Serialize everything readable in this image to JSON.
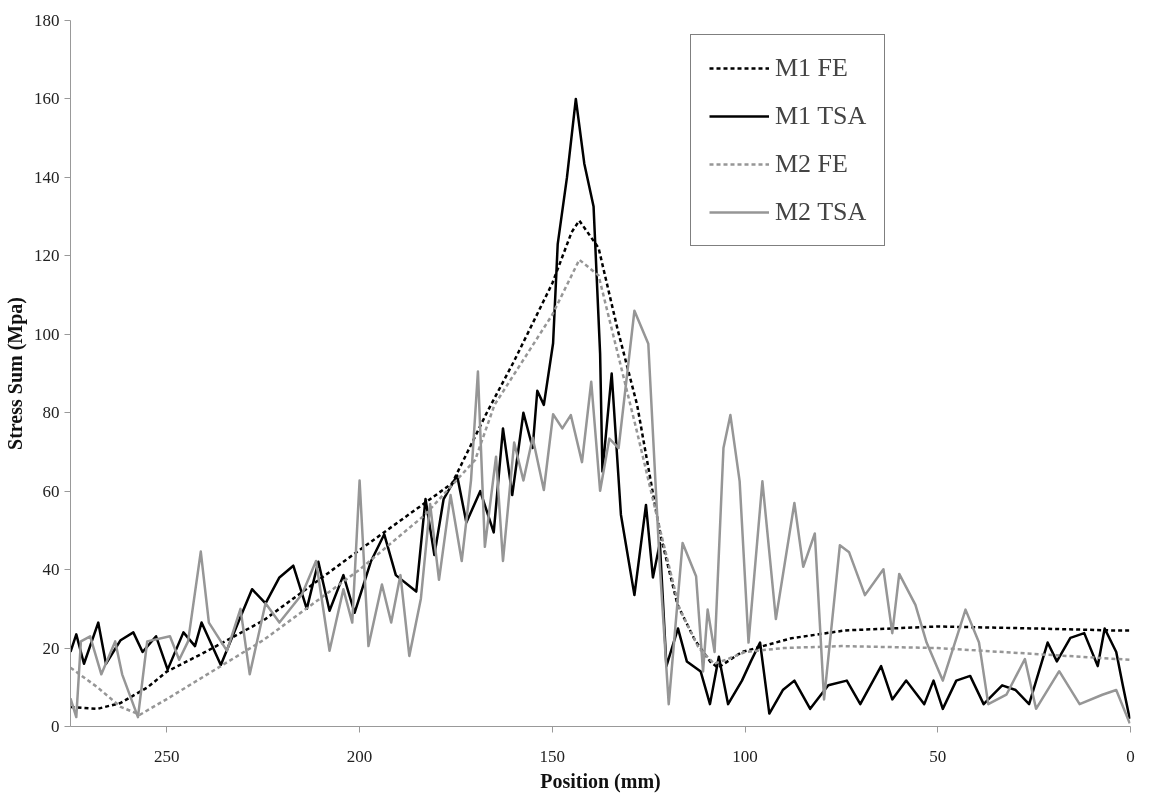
{
  "chart_data": {
    "type": "line",
    "xlabel": "Position (mm)",
    "ylabel": "Stress Sum (Mpa)",
    "xlim": [
      275,
      0
    ],
    "xticks": [
      250,
      200,
      150,
      100,
      50,
      0
    ],
    "ylim": [
      0,
      180
    ],
    "yticks": [
      0,
      20,
      40,
      60,
      80,
      100,
      120,
      140,
      160,
      180
    ],
    "grid": false,
    "legend": "top right",
    "marker": "none",
    "series": [
      {
        "name": "M1 FE",
        "color": "#000000",
        "line_style": "dashed",
        "x": [
          275,
          268,
          262,
          255,
          250,
          240,
          225,
          200,
          176,
          167,
          160,
          150,
          145,
          143,
          138,
          133,
          128,
          122,
          117.5,
          113,
          109,
          107,
          100.8,
          88,
          74,
          50,
          25,
          5,
          0
        ],
        "values": [
          5,
          4.5,
          6,
          10,
          14,
          19,
          27,
          45,
          62,
          80,
          93,
          113,
          126,
          129,
          122,
          101,
          82,
          49,
          31,
          22,
          16.5,
          15,
          19,
          22.5,
          24.5,
          25.5,
          25,
          24.5,
          24.5
        ]
      },
      {
        "name": "M1 TSA",
        "color": "#000000",
        "line_style": "solid",
        "x": [
          275,
          273.5,
          271.5,
          267.8,
          265.8,
          262,
          258.7,
          256.3,
          252.8,
          249.8,
          245.7,
          242.7,
          241,
          236,
          231.5,
          227.9,
          224.4,
          220.8,
          217.2,
          213.7,
          210.7,
          207.8,
          204.2,
          201.3,
          197.1,
          193.6,
          190.6,
          185.3,
          182.9,
          180.6,
          178.2,
          174.7,
          172.3,
          168.7,
          165.2,
          162.8,
          160.4,
          157.5,
          155.1,
          153.9,
          152.2,
          149.8,
          148.6,
          146.2,
          143.9,
          141.7,
          139.3,
          137.6,
          137,
          134.6,
          132.2,
          128.7,
          125.7,
          123.9,
          122.1,
          120.4,
          117.4,
          115.1,
          111.5,
          109.1,
          106.8,
          104.4,
          100.8,
          98.5,
          96.1,
          93.7,
          90.2,
          87.2,
          83.1,
          78.4,
          73.6,
          70.1,
          64.7,
          61.8,
          58.2,
          53.5,
          51.1,
          48.7,
          45.2,
          41.6,
          38.1,
          33.3,
          29.8,
          26.3,
          21.5,
          19.1,
          15.6,
          12,
          8.5,
          6.7,
          3.7,
          2,
          0.2
        ],
        "values": [
          19,
          23.5,
          16,
          26.5,
          16,
          22,
          24,
          19,
          23,
          14.5,
          24,
          20.5,
          26.5,
          15.7,
          26.5,
          35,
          31.4,
          38,
          41,
          30,
          42,
          29.5,
          38.6,
          29,
          42,
          49,
          38.6,
          34.4,
          58,
          43.7,
          58,
          64,
          52,
          60,
          49.5,
          76,
          59,
          80,
          71,
          85.6,
          82,
          97.7,
          123,
          140,
          160,
          143.5,
          132.6,
          95,
          65,
          90,
          54,
          33.5,
          56.5,
          38,
          46.8,
          15.4,
          25,
          16.6,
          14,
          5.7,
          17.8,
          5.7,
          11.7,
          16.6,
          21.4,
          3.3,
          9.3,
          11.7,
          4.5,
          10.5,
          11.7,
          5.7,
          15.4,
          6.9,
          11.7,
          5.7,
          11.7,
          4.5,
          11.7,
          12.9,
          5.7,
          10.5,
          9.3,
          5.7,
          21.4,
          16.6,
          22.6,
          23.8,
          15.4,
          25,
          19,
          10.5,
          2
        ]
      },
      {
        "name": "M2 FE",
        "color": "#969696",
        "line_style": "dashed",
        "x": [
          275,
          268,
          262,
          257,
          250,
          240,
          225,
          200,
          183,
          170,
          165,
          150,
          143,
          138,
          133,
          128,
          122,
          117,
          112,
          108,
          105,
          100,
          90,
          75,
          50,
          25,
          0
        ],
        "values": [
          15,
          10,
          5,
          3,
          7,
          13,
          22,
          40,
          54,
          68,
          82,
          105,
          119,
          115,
          95,
          75,
          50,
          30,
          20,
          16,
          17,
          19,
          20,
          20.5,
          20,
          18.5,
          17
        ]
      },
      {
        "name": "M2 TSA",
        "color": "#969696",
        "line_style": "solid",
        "x": [
          275,
          273.5,
          272.3,
          269.9,
          267,
          263.4,
          261.6,
          257.5,
          255.1,
          249.2,
          246.8,
          244.5,
          241.2,
          239.1,
          234.4,
          230.9,
          228.5,
          224.4,
          220.8,
          214.9,
          211.3,
          207.8,
          204.2,
          201.9,
          200,
          197.7,
          194.2,
          191.8,
          189.4,
          187.1,
          184.1,
          181.7,
          179.4,
          176.4,
          173.5,
          171.1,
          169.3,
          167.5,
          164.6,
          162.8,
          159.9,
          157.5,
          155.1,
          152.2,
          149.8,
          147.4,
          145.2,
          142.3,
          139.9,
          137.6,
          135.2,
          132.8,
          128.7,
          125.1,
          122.1,
          119.8,
          116.2,
          112.7,
          110.9,
          109.7,
          107.9,
          105.6,
          103.8,
          101.4,
          99.1,
          95.5,
          92,
          87.2,
          84.9,
          81.9,
          79.5,
          75.4,
          73,
          68.9,
          64.1,
          61.8,
          60,
          55.8,
          52.9,
          48.7,
          42.8,
          39.3,
          36.9,
          32.2,
          27.4,
          24.5,
          18.5,
          13.2,
          7.3,
          3.7,
          0.2
        ],
        "values": [
          7.2,
          2.4,
          21.7,
          23,
          13.3,
          21.7,
          13.3,
          2.4,
          21.7,
          23,
          17,
          21.7,
          44.6,
          26.5,
          19.3,
          30,
          13.3,
          31.4,
          26.5,
          33.8,
          42.2,
          19.3,
          35,
          26.5,
          62.7,
          20.5,
          36.2,
          26.5,
          38.6,
          18,
          32.6,
          56.7,
          37.4,
          59,
          42.2,
          62.7,
          90.5,
          45.8,
          68.8,
          42.2,
          72.4,
          62.7,
          73.6,
          60.3,
          79.6,
          76,
          79.4,
          67.4,
          87.9,
          60.1,
          73.4,
          71,
          106,
          97.6,
          40.7,
          5.7,
          46.8,
          38.3,
          14,
          29.8,
          19,
          71,
          79.4,
          62.5,
          21.4,
          62.5,
          27.4,
          57,
          40.7,
          49.2,
          6.9,
          46.2,
          44.4,
          33.5,
          40.1,
          23.8,
          38.9,
          31,
          21.4,
          11.7,
          29.8,
          21.4,
          5.7,
          8.1,
          17.2,
          4.5,
          14.1,
          5.7,
          8.1,
          9.3,
          0.8
        ]
      }
    ]
  }
}
